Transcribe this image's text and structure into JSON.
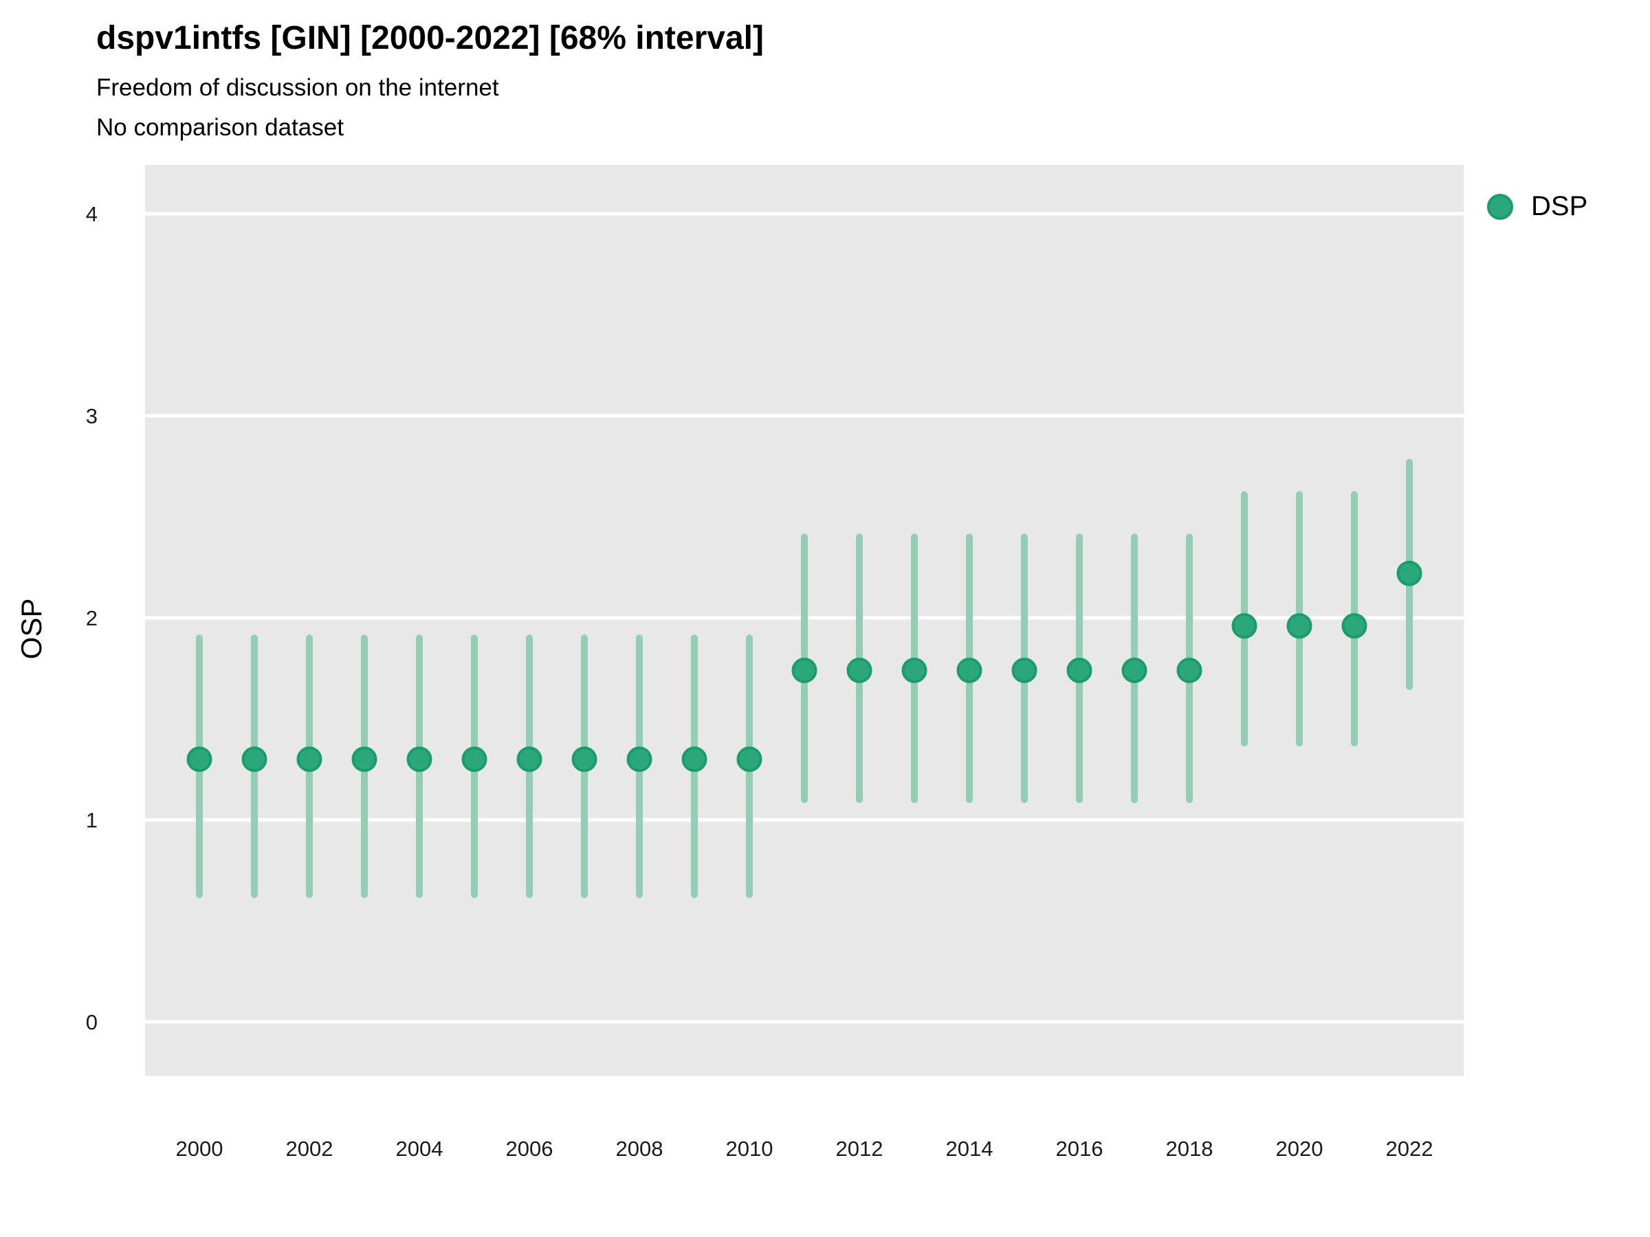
{
  "title": "dspv1intfs [GIN] [2000-2022] [68% interval]",
  "subtitle_line1": "Freedom of discussion on the internet",
  "subtitle_line2": "No comparison dataset",
  "y_axis_label": "OSP",
  "legend": {
    "series_label": "DSP"
  },
  "colors": {
    "point_fill": "#2aa87b",
    "point_border": "#1b9c6c",
    "interval_bar": "#93cdb3",
    "panel_background": "#e8e8e8",
    "gridline": "#ffffff",
    "tick_text": "#1a1a1a"
  },
  "chart_data": {
    "type": "scatter",
    "title": "dspv1intfs [GIN] [2000-2022] [68% interval]",
    "subtitle": [
      "Freedom of discussion on the internet",
      "No comparison dataset"
    ],
    "xlabel": "",
    "ylabel": "OSP",
    "interval": "68%",
    "grid": "horizontal-major-only",
    "legend_position": "right-top",
    "yticks": [
      0,
      1,
      2,
      3,
      4
    ],
    "xticks": [
      2000,
      2002,
      2004,
      2006,
      2008,
      2010,
      2012,
      2014,
      2016,
      2018,
      2020,
      2022
    ],
    "ylim": [
      -0.25,
      4.25
    ],
    "xlim": [
      1999,
      2023
    ],
    "series": [
      {
        "name": "DSP",
        "x": [
          2000,
          2001,
          2002,
          2003,
          2004,
          2005,
          2006,
          2007,
          2008,
          2009,
          2010,
          2011,
          2012,
          2013,
          2014,
          2015,
          2016,
          2017,
          2018,
          2019,
          2020,
          2021,
          2022
        ],
        "est": [
          1.3,
          1.3,
          1.3,
          1.3,
          1.3,
          1.3,
          1.3,
          1.3,
          1.3,
          1.3,
          1.3,
          1.74,
          1.74,
          1.74,
          1.74,
          1.74,
          1.74,
          1.74,
          1.74,
          1.96,
          1.96,
          1.96,
          2.22
        ],
        "lower_68": [
          0.63,
          0.63,
          0.63,
          0.63,
          0.63,
          0.63,
          0.63,
          0.63,
          0.63,
          0.63,
          0.63,
          1.1,
          1.1,
          1.1,
          1.1,
          1.1,
          1.1,
          1.1,
          1.1,
          1.38,
          1.38,
          1.38,
          1.66
        ],
        "upper_68": [
          1.9,
          1.9,
          1.9,
          1.9,
          1.9,
          1.9,
          1.9,
          1.9,
          1.9,
          1.9,
          1.9,
          2.4,
          2.4,
          2.4,
          2.4,
          2.4,
          2.4,
          2.4,
          2.4,
          2.61,
          2.61,
          2.61,
          2.77
        ]
      }
    ]
  }
}
